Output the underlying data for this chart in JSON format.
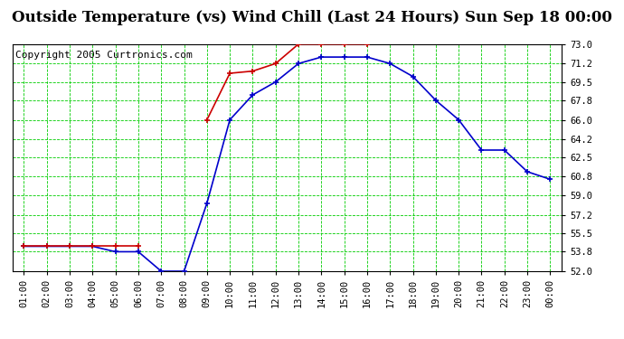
{
  "title": "Outside Temperature (vs) Wind Chill (Last 24 Hours) Sun Sep 18 00:00",
  "copyright": "Copyright 2005 Curtronics.com",
  "x_labels": [
    "01:00",
    "02:00",
    "03:00",
    "04:00",
    "05:00",
    "06:00",
    "07:00",
    "08:00",
    "09:00",
    "10:00",
    "11:00",
    "12:00",
    "13:00",
    "14:00",
    "15:00",
    "16:00",
    "17:00",
    "18:00",
    "19:00",
    "20:00",
    "21:00",
    "22:00",
    "23:00",
    "00:00"
  ],
  "y_ticks": [
    52.0,
    53.8,
    55.5,
    57.2,
    59.0,
    60.8,
    62.5,
    64.2,
    66.0,
    67.8,
    69.5,
    71.2,
    73.0
  ],
  "ylim": [
    52.0,
    73.0
  ],
  "blue_data": [
    54.3,
    54.3,
    54.3,
    54.3,
    53.8,
    53.8,
    52.0,
    52.0,
    58.3,
    66.0,
    68.3,
    69.5,
    71.2,
    71.8,
    71.8,
    71.8,
    71.2,
    70.0,
    67.8,
    66.0,
    63.2,
    63.2,
    61.2,
    60.5
  ],
  "red_data": [
    54.3,
    54.3,
    54.3,
    54.3,
    54.3,
    54.3,
    null,
    null,
    66.0,
    70.3,
    70.5,
    71.2,
    73.0,
    73.0,
    73.0,
    73.0,
    null,
    null,
    null,
    null,
    null,
    null,
    null,
    null
  ],
  "bg_color": "#ffffff",
  "plot_bg": "#ffffff",
  "grid_color": "#00cc00",
  "blue_color": "#0000cc",
  "red_color": "#cc0000",
  "title_fontsize": 12,
  "copyright_fontsize": 8
}
